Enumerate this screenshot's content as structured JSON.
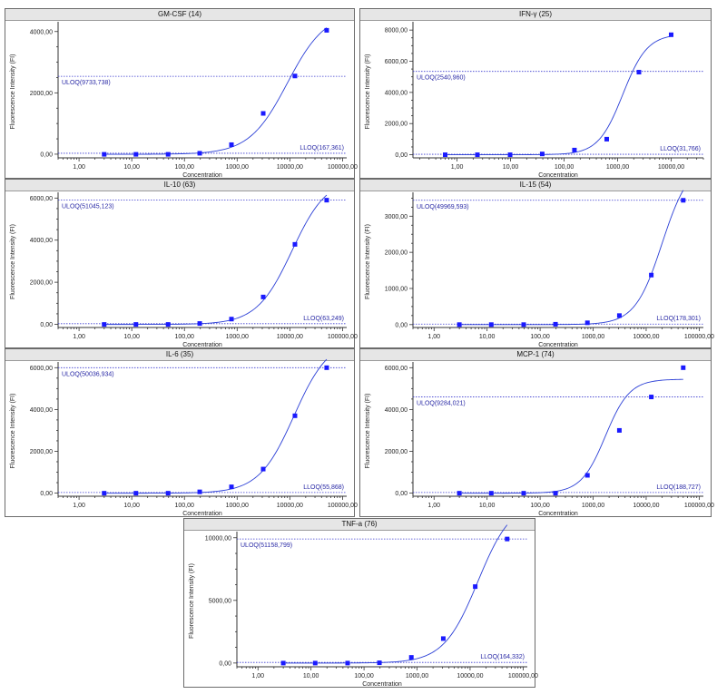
{
  "colors": {
    "curve": "#2b3fd6",
    "point": "#1a1aff",
    "reference": "#3a3acf",
    "axis": "#333333",
    "title_bg": "#e6e6e6"
  },
  "chart_data": [
    {
      "type": "scatter",
      "title": "GM-CSF (14)",
      "xlabel": "Concentration",
      "ylabel": "Fluorescence Intensity (FI)",
      "x_scale": "log",
      "xlim": [
        0.4,
        120000
      ],
      "ylim": [
        -120,
        4200
      ],
      "x_ticks": [
        1,
        10,
        100,
        1000,
        10000,
        100000
      ],
      "x_tick_labels": [
        "1,00",
        "10,00",
        "100,00",
        "1000,00",
        "10000,00",
        "100000,00"
      ],
      "y_ticks": [
        0,
        2000,
        4000
      ],
      "y_tick_labels": [
        "0,00",
        "2000,00",
        "4000,00"
      ],
      "points": [
        [
          3,
          -5
        ],
        [
          12,
          -5
        ],
        [
          49,
          -5
        ],
        [
          195,
          30
        ],
        [
          780,
          310
        ],
        [
          3125,
          1330
        ],
        [
          12500,
          2550
        ],
        [
          50000,
          4040
        ]
      ],
      "curve": {
        "bottom": -5,
        "top": 4650,
        "ec50": 9000,
        "hill": 1.2,
        "xmax": 50000
      },
      "ref_lines": [
        {
          "label": "ULOQ(9733,738)",
          "y": 2540,
          "position": "top-left"
        },
        {
          "label": "LLOQ(167,361)",
          "y": 30,
          "position": "bottom-right"
        }
      ]
    },
    {
      "type": "scatter",
      "title": "IFN-γ (25)",
      "xlabel": "Concentration",
      "ylabel": "Fluorescence Intensity (FI)",
      "x_scale": "log",
      "xlim": [
        0.15,
        40000
      ],
      "ylim": [
        -200,
        8300
      ],
      "x_ticks": [
        1,
        10,
        100,
        1000,
        10000
      ],
      "x_tick_labels": [
        "1,00",
        "10,00",
        "100,00",
        "1000,00",
        "10000,00"
      ],
      "y_ticks": [
        0,
        2000,
        4000,
        6000,
        8000
      ],
      "y_tick_labels": [
        "0,00",
        "2000,00",
        "4000,00",
        "6000,00",
        "8000,00"
      ],
      "points": [
        [
          0.6,
          0
        ],
        [
          2.4,
          0
        ],
        [
          9.8,
          0
        ],
        [
          39,
          50
        ],
        [
          156,
          300
        ],
        [
          625,
          1000
        ],
        [
          2500,
          5300
        ],
        [
          10000,
          7700
        ]
      ],
      "curve": {
        "bottom": 0,
        "top": 7750,
        "ec50": 1250,
        "hill": 1.9,
        "xmax": 10000
      },
      "ref_lines": [
        {
          "label": "ULOQ(2540,960)",
          "y": 5350,
          "position": "top-left"
        },
        {
          "label": "LLOQ(31,766)",
          "y": 30,
          "position": "bottom-right"
        }
      ]
    },
    {
      "type": "scatter",
      "title": "IL-10 (63)",
      "xlabel": "Concentration",
      "ylabel": "Fluorescence Intensity (FI)",
      "x_scale": "log",
      "xlim": [
        0.4,
        120000
      ],
      "ylim": [
        -150,
        6100
      ],
      "x_ticks": [
        1,
        10,
        100,
        1000,
        10000,
        100000
      ],
      "x_tick_labels": [
        "1,00",
        "10,00",
        "100,00",
        "1000,00",
        "10000,00",
        "100000,00"
      ],
      "y_ticks": [
        0,
        2000,
        4000,
        6000
      ],
      "y_tick_labels": [
        "0,00",
        "2000,00",
        "4000,00",
        "6000,00"
      ],
      "points": [
        [
          3,
          -5
        ],
        [
          12,
          -5
        ],
        [
          49,
          -5
        ],
        [
          195,
          40
        ],
        [
          780,
          250
        ],
        [
          3125,
          1300
        ],
        [
          12500,
          3800
        ],
        [
          50000,
          5900
        ]
      ],
      "curve": {
        "bottom": -5,
        "top": 7000,
        "ec50": 11000,
        "hill": 1.3,
        "xmax": 50000
      },
      "ref_lines": [
        {
          "label": "ULOQ(51045,123)",
          "y": 5900,
          "position": "top-left"
        },
        {
          "label": "LLOQ(63,249)",
          "y": 30,
          "position": "bottom-right"
        }
      ]
    },
    {
      "type": "scatter",
      "title": "IL-15 (54)",
      "xlabel": "Concentration",
      "ylabel": "Fluorescence Intensity (FI)",
      "x_scale": "log",
      "xlim": [
        0.4,
        120000
      ],
      "ylim": [
        -80,
        3560
      ],
      "x_ticks": [
        1,
        10,
        100,
        1000,
        10000,
        100000
      ],
      "x_tick_labels": [
        "1,00",
        "10,00",
        "100,00",
        "1000,00",
        "10000,00",
        "100000,00"
      ],
      "y_ticks": [
        0,
        1000,
        2000,
        3000
      ],
      "y_tick_labels": [
        "0,00",
        "1000,00",
        "2000,00",
        "3000,00"
      ],
      "points": [
        [
          3,
          0
        ],
        [
          12,
          0
        ],
        [
          49,
          0
        ],
        [
          195,
          10
        ],
        [
          780,
          50
        ],
        [
          3125,
          250
        ],
        [
          12500,
          1370
        ],
        [
          50000,
          3440
        ]
      ],
      "curve": {
        "bottom": 0,
        "top": 4500,
        "ec50": 20000,
        "hill": 1.7,
        "xmax": 50000
      },
      "ref_lines": [
        {
          "label": "ULOQ(49969,593)",
          "y": 3440,
          "position": "top-left"
        },
        {
          "label": "LLOQ(178,301)",
          "y": 15,
          "position": "bottom-right"
        }
      ]
    },
    {
      "type": "scatter",
      "title": "IL-6 (35)",
      "xlabel": "Concentration",
      "ylabel": "Fluorescence Intensity (FI)",
      "x_scale": "log",
      "xlim": [
        0.4,
        120000
      ],
      "ylim": [
        -150,
        6100
      ],
      "x_ticks": [
        1,
        10,
        100,
        1000,
        10000,
        100000
      ],
      "x_tick_labels": [
        "1,00",
        "10,00",
        "100,00",
        "1000,00",
        "10000,00",
        "100000,00"
      ],
      "y_ticks": [
        0,
        2000,
        4000,
        6000
      ],
      "y_tick_labels": [
        "0,00",
        "2000,00",
        "4000,00",
        "6000,00"
      ],
      "points": [
        [
          3,
          -5
        ],
        [
          12,
          -5
        ],
        [
          49,
          -5
        ],
        [
          195,
          60
        ],
        [
          780,
          300
        ],
        [
          3125,
          1150
        ],
        [
          12500,
          3700
        ],
        [
          50000,
          6000
        ]
      ],
      "curve": {
        "bottom": -5,
        "top": 7400,
        "ec50": 12000,
        "hill": 1.3,
        "xmax": 50000
      },
      "ref_lines": [
        {
          "label": "ULOQ(50036,934)",
          "y": 6000,
          "position": "top-left"
        },
        {
          "label": "LLOQ(55,868)",
          "y": 30,
          "position": "bottom-right"
        }
      ]
    },
    {
      "type": "scatter",
      "title": "MCP-1 (74)",
      "xlabel": "Concentration",
      "ylabel": "Fluorescence Intensity (FI)",
      "x_scale": "log",
      "xlim": [
        0.4,
        120000
      ],
      "ylim": [
        -150,
        6100
      ],
      "x_ticks": [
        1,
        10,
        100,
        1000,
        10000,
        100000
      ],
      "x_tick_labels": [
        "1,00",
        "10,00",
        "100,00",
        "1000,00",
        "10000,00",
        "100000,00"
      ],
      "y_ticks": [
        0,
        2000,
        4000,
        6000
      ],
      "y_tick_labels": [
        "0,00",
        "2000,00",
        "4000,00",
        "6000,00"
      ],
      "points": [
        [
          3,
          -5
        ],
        [
          12,
          -5
        ],
        [
          49,
          -5
        ],
        [
          195,
          -5
        ],
        [
          780,
          850
        ],
        [
          3125,
          3000
        ],
        [
          12500,
          4600
        ],
        [
          50000,
          6000
        ]
      ],
      "curve": {
        "bottom": -5,
        "top": 5450,
        "ec50": 1700,
        "hill": 1.9,
        "xmax": 50000
      },
      "ref_lines": [
        {
          "label": "ULOQ(9284,021)",
          "y": 4600,
          "position": "top-left"
        },
        {
          "label": "LLOQ(188,727)",
          "y": 30,
          "position": "bottom-right"
        }
      ]
    },
    {
      "type": "scatter",
      "title": "TNF-a (76)",
      "xlabel": "Concentration",
      "ylabel": "Fluorescence Intensity (FI)",
      "x_scale": "log",
      "xlim": [
        0.4,
        120000
      ],
      "ylim": [
        -300,
        10200
      ],
      "x_ticks": [
        1,
        10,
        100,
        1000,
        10000,
        100000
      ],
      "x_tick_labels": [
        "1,00",
        "10,00",
        "100,00",
        "1000,00",
        "10000,00",
        "100000,00"
      ],
      "y_ticks": [
        0,
        5000,
        10000
      ],
      "y_tick_labels": [
        "0,00",
        "5000,00",
        "10000,00"
      ],
      "points": [
        [
          3,
          -5
        ],
        [
          12,
          -5
        ],
        [
          49,
          -5
        ],
        [
          195,
          20
        ],
        [
          780,
          450
        ],
        [
          3125,
          1950
        ],
        [
          12500,
          6100
        ],
        [
          50000,
          9900
        ]
      ],
      "curve": {
        "bottom": -5,
        "top": 13000,
        "ec50": 14000,
        "hill": 1.35,
        "xmax": 50000
      },
      "ref_lines": [
        {
          "label": "ULOQ(51158,799)",
          "y": 9900,
          "position": "top-left"
        },
        {
          "label": "LLOQ(164,332)",
          "y": 50,
          "position": "bottom-right"
        }
      ]
    }
  ]
}
